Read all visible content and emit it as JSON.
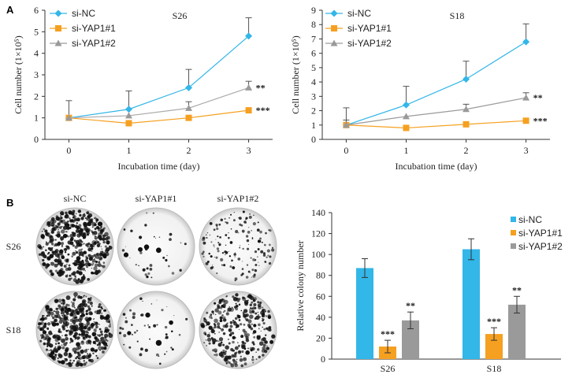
{
  "panels": {
    "a_label": "A",
    "b_label": "B"
  },
  "colors": {
    "si_nc": "#33b6e8",
    "si_yap1_1": "#f5a020",
    "si_yap1_2": "#9a9a9a",
    "line_si_yap1_2_s26": "#aaaaaa"
  },
  "plates": {
    "columns": [
      "si-NC",
      "si-YAP1#1",
      "si-YAP1#2"
    ],
    "rows": [
      "S26",
      "S18"
    ],
    "density": [
      [
        0.85,
        0.03,
        0.25
      ],
      [
        0.9,
        0.06,
        0.55
      ]
    ]
  },
  "chart_data": [
    {
      "type": "line",
      "title": "S26",
      "xlabel": "Incubation time (day)",
      "ylabel": "Cell number (1×10⁵)",
      "x": [
        0,
        1,
        2,
        3
      ],
      "xlim": [
        -0.4,
        3.4
      ],
      "ylim": [
        0,
        6
      ],
      "yticks": [
        0,
        1,
        2,
        3,
        4,
        5,
        6
      ],
      "legend_position": "top-left",
      "series": [
        {
          "name": "si-NC",
          "marker": "diamond",
          "values": [
            1.0,
            1.4,
            2.4,
            4.8
          ],
          "errors": [
            0.8,
            0.85,
            0.85,
            0.85
          ]
        },
        {
          "name": "si-YAP1#1",
          "marker": "square",
          "values": [
            1.0,
            0.75,
            1.0,
            1.35
          ],
          "errors": [
            0,
            0,
            0,
            0
          ],
          "annotation": "***"
        },
        {
          "name": "si-YAP1#2",
          "marker": "triangle",
          "values": [
            1.0,
            1.1,
            1.45,
            2.4
          ],
          "errors": [
            0,
            0,
            0.3,
            0.3
          ],
          "annotation": "**"
        }
      ]
    },
    {
      "type": "line",
      "title": "S18",
      "xlabel": "Incubation time (day)",
      "ylabel": "Cell number (1×10⁵)",
      "x": [
        0,
        1,
        2,
        3
      ],
      "xlim": [
        -0.4,
        3.4
      ],
      "ylim": [
        0,
        9
      ],
      "yticks": [
        0,
        1,
        2,
        3,
        4,
        5,
        6,
        7,
        8,
        9
      ],
      "legend_position": "top-left",
      "series": [
        {
          "name": "si-NC",
          "marker": "diamond",
          "values": [
            1.0,
            2.4,
            4.2,
            6.8
          ],
          "errors": [
            1.2,
            1.3,
            1.25,
            1.25
          ]
        },
        {
          "name": "si-YAP1#1",
          "marker": "square",
          "values": [
            1.0,
            0.8,
            1.05,
            1.3
          ],
          "errors": [
            0,
            0,
            0,
            0
          ],
          "annotation": "***"
        },
        {
          "name": "si-YAP1#2",
          "marker": "triangle",
          "values": [
            1.0,
            1.6,
            2.1,
            2.9
          ],
          "errors": [
            0.35,
            0,
            0.35,
            0.35
          ],
          "annotation": "**"
        }
      ]
    },
    {
      "type": "bar",
      "title": "",
      "xlabel": "",
      "ylabel": "Relative colony number",
      "categories": [
        "S26",
        "S18"
      ],
      "ylim": [
        0,
        140
      ],
      "yticks": [
        0,
        20,
        40,
        60,
        80,
        100,
        120,
        140
      ],
      "legend_position": "top-right",
      "series": [
        {
          "name": "si-NC",
          "values": [
            87,
            105
          ],
          "errors": [
            9,
            10
          ],
          "annotations": [
            "",
            ""
          ]
        },
        {
          "name": "si-YAP1#1",
          "values": [
            12,
            24
          ],
          "errors": [
            6,
            6
          ],
          "annotations": [
            "***",
            "***"
          ]
        },
        {
          "name": "si-YAP1#2",
          "values": [
            37,
            52
          ],
          "errors": [
            8,
            8
          ],
          "annotations": [
            "**",
            "**"
          ]
        }
      ]
    }
  ]
}
